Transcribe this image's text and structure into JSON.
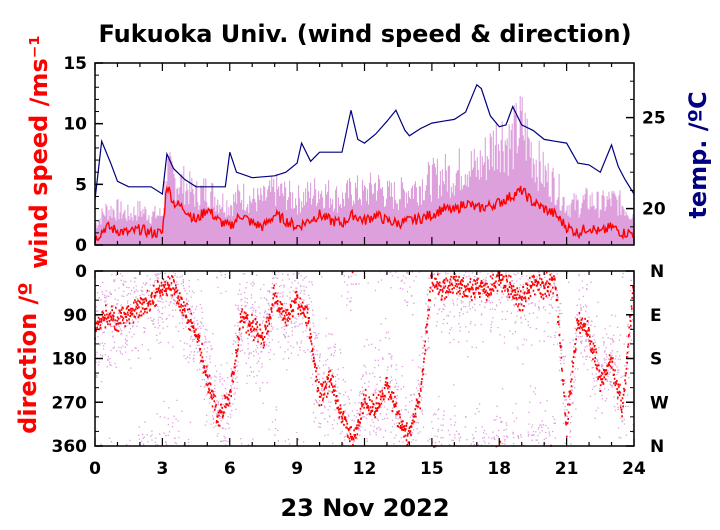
{
  "chart_data": {
    "title": "Fukuoka Univ. (wind speed & direction)",
    "xlabel": "23 Nov 2022",
    "x_ticks": [
      0,
      3,
      6,
      9,
      12,
      15,
      18,
      21,
      24
    ],
    "xlim": [
      0,
      24
    ],
    "colors": {
      "mean": "#ff0000",
      "raw": "#dda0dd",
      "temp": "#000080"
    },
    "panels": [
      {
        "type": "line",
        "name": "wind_speed",
        "ylabel": "wind speed /ms⁻¹",
        "ylim": [
          0,
          15
        ],
        "y_ticks": [
          0,
          5,
          10,
          15
        ],
        "y2label": "temp. /ºC",
        "y2lim": [
          18,
          28
        ],
        "y2_ticks": [
          20,
          25
        ],
        "series": [
          {
            "role": "wind_speed_mean",
            "x": [
              0,
              0.5,
              1,
              1.5,
              2,
              2.5,
              3,
              3.2,
              3.5,
              4,
              4.5,
              5,
              5.5,
              6,
              6.5,
              7,
              7.5,
              8,
              8.5,
              9,
              9.5,
              10,
              10.5,
              11,
              11.5,
              12,
              12.5,
              13,
              13.5,
              14,
              14.5,
              15,
              15.5,
              16,
              16.5,
              17,
              17.5,
              18,
              18.5,
              19,
              19.5,
              20,
              20.5,
              21,
              21.5,
              22,
              22.5,
              23,
              23.5,
              24
            ],
            "y": [
              0.5,
              1.5,
              1.2,
              1.0,
              1.3,
              1.0,
              1.0,
              5.0,
              3.5,
              3.0,
              2.0,
              3.0,
              2.0,
              1.5,
              2.5,
              1.8,
              1.5,
              2.5,
              2.0,
              1.5,
              2.0,
              2.5,
              2.0,
              1.8,
              2.5,
              2.0,
              2.5,
              2.0,
              1.8,
              2.0,
              2.2,
              2.5,
              3.0,
              2.8,
              3.5,
              3.0,
              3.2,
              3.5,
              4.0,
              4.5,
              3.5,
              3.0,
              2.5,
              1.5,
              1.0,
              1.5,
              1.0,
              1.5,
              1.0,
              1.0
            ]
          },
          {
            "role": "wind_speed_raw_max",
            "x": [
              0,
              0.5,
              1,
              1.5,
              2,
              2.5,
              3,
              3.2,
              3.5,
              4,
              4.5,
              5,
              5.5,
              6,
              6.5,
              7,
              7.5,
              8,
              8.5,
              9,
              9.5,
              10,
              10.5,
              11,
              11.5,
              12,
              12.5,
              13,
              13.5,
              14,
              14.5,
              15,
              15.5,
              16,
              16.5,
              17,
              17.5,
              18,
              18.5,
              19,
              19.5,
              20,
              20.5,
              21,
              21.5,
              22,
              22.5,
              23,
              23.5,
              24
            ],
            "y": [
              2,
              3.5,
              3.5,
              3,
              3.5,
              3,
              3,
              7.5,
              6.5,
              6,
              5,
              5.5,
              4.5,
              4,
              5,
              4.5,
              4.5,
              5.5,
              5,
              4.5,
              5,
              5.5,
              5,
              4.5,
              5.5,
              5,
              6,
              5,
              5,
              5.5,
              6,
              6.5,
              7,
              7,
              8,
              7.5,
              9,
              11,
              10,
              12,
              9,
              7,
              6,
              4,
              4,
              4.5,
              4,
              4.5,
              4,
              3
            ]
          },
          {
            "role": "temperature",
            "axis": "y2",
            "x": [
              0,
              0.3,
              0.7,
              1,
              1.5,
              2,
              2.5,
              3,
              3.2,
              3.5,
              4,
              4.5,
              5,
              5.5,
              5.8,
              6,
              6.3,
              7,
              8,
              8.5,
              9,
              9.2,
              9.6,
              10,
              10.5,
              11,
              11.4,
              11.7,
              12,
              12.5,
              13,
              13.4,
              13.8,
              14,
              14.5,
              15,
              15.5,
              16,
              16.5,
              17,
              17.2,
              17.6,
              18,
              18.3,
              18.6,
              19,
              19.5,
              20,
              20.5,
              21,
              21.5,
              22,
              22.5,
              23,
              23.3,
              23.6,
              24
            ],
            "y": [
              20.5,
              23.7,
              22.5,
              21.5,
              21.2,
              21.2,
              21.2,
              20.8,
              23.0,
              22.2,
              21.6,
              21.2,
              21.2,
              21.2,
              21.2,
              23.1,
              22.0,
              21.7,
              21.8,
              22.0,
              22.5,
              23.6,
              22.6,
              23.1,
              23.1,
              23.1,
              25.4,
              23.8,
              23.6,
              24.1,
              24.8,
              25.4,
              24.3,
              24.0,
              24.4,
              24.7,
              24.8,
              24.9,
              25.3,
              26.8,
              26.6,
              25.1,
              24.5,
              24.6,
              25.6,
              24.6,
              24.3,
              23.8,
              23.7,
              23.6,
              22.5,
              22.4,
              22.0,
              23.5,
              22.3,
              21.6,
              20.8
            ]
          }
        ]
      },
      {
        "type": "scatter",
        "name": "wind_direction",
        "ylabel": "direction /º",
        "ylim": [
          0,
          360
        ],
        "y_inverted": true,
        "y_ticks": [
          0,
          90,
          180,
          270,
          360
        ],
        "y2_tick_labels": [
          "N",
          "E",
          "S",
          "W",
          "N"
        ],
        "series": [
          {
            "role": "direction_mean",
            "x": [
              0,
              0.5,
              1,
              1.5,
              2,
              2.5,
              3,
              3.5,
              4,
              4.5,
              5,
              5.5,
              6,
              6.5,
              7,
              7.5,
              8,
              8.5,
              9,
              9.5,
              10,
              10.5,
              11,
              11.5,
              12,
              12.5,
              13,
              13.5,
              14,
              14.5,
              15,
              15.5,
              16,
              16.5,
              17,
              17.5,
              18,
              18.5,
              19,
              19.5,
              20,
              20.5,
              21,
              21.5,
              22,
              22.5,
              23,
              23.5,
              24
            ],
            "y": [
              120,
              90,
              100,
              85,
              70,
              60,
              30,
              30,
              80,
              120,
              220,
              300,
              260,
              100,
              110,
              140,
              50,
              100,
              60,
              100,
              260,
              220,
              300,
              350,
              260,
              280,
              230,
              300,
              340,
              250,
              10,
              40,
              20,
              40,
              30,
              40,
              10,
              30,
              60,
              20,
              30,
              20,
              320,
              100,
              130,
              220,
              190,
              280,
              10
            ]
          }
        ]
      }
    ]
  }
}
